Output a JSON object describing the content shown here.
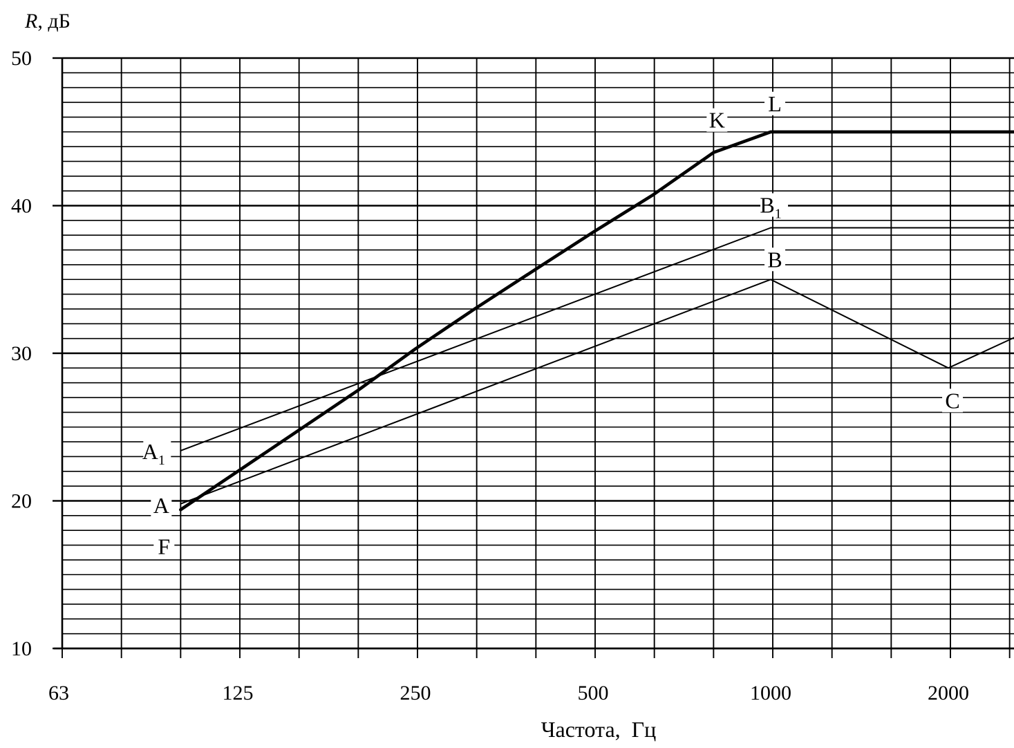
{
  "chart_data": {
    "type": "line",
    "ylabel": {
      "symbol": "R",
      "unit": "дБ"
    },
    "xlabel": "Частота,  Гц",
    "x_scale": "log2",
    "xlim": [
      63,
      2800
    ],
    "ylim": [
      10,
      50
    ],
    "x_ticks": [
      {
        "value": 63,
        "label": "63"
      },
      {
        "value": 125,
        "label": "125"
      },
      {
        "value": 250,
        "label": "250"
      },
      {
        "value": 500,
        "label": "500"
      },
      {
        "value": 1000,
        "label": "1000"
      },
      {
        "value": 2000,
        "label": "2000"
      }
    ],
    "y_ticks": [
      {
        "value": 10,
        "label": "10"
      },
      {
        "value": 20,
        "label": "20"
      },
      {
        "value": 30,
        "label": "30"
      },
      {
        "value": 40,
        "label": "40"
      },
      {
        "value": 50,
        "label": "50"
      }
    ],
    "grid": {
      "x_minor_per_octave": 3,
      "y_minor_step": 1,
      "on": true
    },
    "series": [
      {
        "id": "FKL",
        "style": "bold",
        "points": [
          [
            100,
            19.4
          ],
          [
            125,
            22.0
          ],
          [
            200,
            27.5
          ],
          [
            250,
            30.3
          ],
          [
            315,
            33.0
          ],
          [
            400,
            35.7
          ],
          [
            500,
            38.2
          ],
          [
            630,
            40.7
          ],
          [
            800,
            43.6
          ],
          [
            1000,
            45.0
          ],
          [
            2800,
            45.0
          ]
        ]
      },
      {
        "id": "A1B1",
        "style": "thin",
        "points": [
          [
            100,
            23.4
          ],
          [
            1000,
            38.5
          ],
          [
            2800,
            38.5
          ]
        ]
      },
      {
        "id": "ABC",
        "style": "thin",
        "points": [
          [
            100,
            19.8
          ],
          [
            1000,
            35.0
          ],
          [
            2000,
            29.0
          ],
          [
            2800,
            31.7
          ]
        ]
      }
    ],
    "point_labels": [
      {
        "text": "A",
        "sub": "1",
        "x": 100,
        "y": 23.4
      },
      {
        "text": "A",
        "sub": "",
        "x": 100,
        "y": 19.8
      },
      {
        "text": "F",
        "sub": "",
        "x": 100,
        "y": 19.4
      },
      {
        "text": "K",
        "sub": "",
        "x": 800,
        "y": 43.6
      },
      {
        "text": "L",
        "sub": "",
        "x": 1000,
        "y": 45.0
      },
      {
        "text": "B",
        "sub": "1",
        "x": 1000,
        "y": 38.5
      },
      {
        "text": "B",
        "sub": "",
        "x": 1000,
        "y": 35.0
      },
      {
        "text": "C",
        "sub": "",
        "x": 2000,
        "y": 29.0
      }
    ]
  }
}
